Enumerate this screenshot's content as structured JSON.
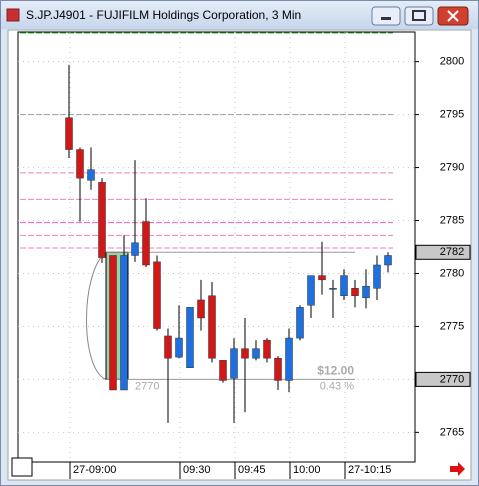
{
  "chart_data": {
    "type": "candlestick",
    "title": "S.JP.J4901 - FUJIFILM Holdings Corporation, 3 Min",
    "categories": [
      "27-09:00",
      null,
      null,
      null,
      null,
      null,
      null,
      null,
      null,
      null,
      "09:30",
      null,
      null,
      null,
      null,
      "09:45",
      null,
      null,
      null,
      null,
      "10:00",
      null,
      null,
      null,
      null,
      "27-10:15",
      null,
      null,
      null,
      null
    ],
    "open": [
      2794.7,
      2791.7,
      2788.8,
      2788.6,
      2781.7,
      2769.0,
      2781.7,
      2784.9,
      2781.1,
      2774.1,
      2772.1,
      2771.1,
      2777.5,
      2777.9,
      2771.8,
      2770.1,
      2772.9,
      2772.0,
      2773.7,
      2772.0,
      2769.9,
      2773.9,
      2777.0,
      2779.8,
      2778.5,
      2777.9,
      2778.6,
      2777.7,
      2778.6,
      2780.8
    ],
    "high": [
      2799.7,
      2791.9,
      2791.9,
      2789.0,
      2781.7,
      2783.6,
      2790.7,
      2787.1,
      2781.7,
      2774.8,
      2777.0,
      2776.8,
      2779.4,
      2779.2,
      2771.8,
      2773.9,
      2775.8,
      2773.7,
      2773.9,
      2772.2,
      2774.8,
      2777.0,
      2779.8,
      2783.0,
      2779.4,
      2780.4,
      2779.4,
      2780.4,
      2781.7,
      2782.0
    ],
    "low": [
      2790.9,
      2784.9,
      2787.9,
      2781.0,
      2769.0,
      2769.0,
      2781.1,
      2780.6,
      2774.6,
      2765.9,
      2772.0,
      2771.1,
      2774.6,
      2771.6,
      2769.7,
      2765.9,
      2766.9,
      2771.8,
      2771.6,
      2769.0,
      2768.8,
      2773.7,
      2775.8,
      2778.0,
      2775.8,
      2777.5,
      2776.8,
      2776.7,
      2777.5,
      2780.1
    ],
    "close": [
      2791.7,
      2789.0,
      2789.8,
      2781.5,
      2769.0,
      2781.7,
      2782.9,
      2780.8,
      2774.8,
      2772.0,
      2773.9,
      2776.8,
      2775.8,
      2772.0,
      2769.9,
      2772.9,
      2772.0,
      2772.9,
      2772.0,
      2769.9,
      2773.9,
      2776.8,
      2779.8,
      2779.4,
      2778.6,
      2779.8,
      2777.9,
      2778.8,
      2780.8,
      2781.7
    ],
    "up_color": "#1e6fe0",
    "down_color": "#d01818",
    "ylim": [
      2762.2,
      2802.8
    ],
    "yticks": [
      2765,
      2770,
      2775,
      2780,
      2785,
      2790,
      2795,
      2800
    ],
    "grid": true,
    "levels": [
      {
        "value": 2795,
        "color": "#a0a0a0"
      },
      {
        "value": 2789.5,
        "color": "#f080c0"
      },
      {
        "value": 2787,
        "color": "#f080c0"
      },
      {
        "value": 2784.8,
        "color": "#f060b0"
      },
      {
        "value": 2783.6,
        "color": "#f080c0"
      },
      {
        "value": 2782.4,
        "color": "#f080c0"
      },
      {
        "value": 2802.7,
        "color": "#30b030"
      }
    ],
    "price_markers": [
      2782,
      2770
    ],
    "measure": {
      "high": 2782,
      "low": 2770,
      "label": "$12.00",
      "percent": "0.43 %",
      "start_label": "2770"
    }
  }
}
